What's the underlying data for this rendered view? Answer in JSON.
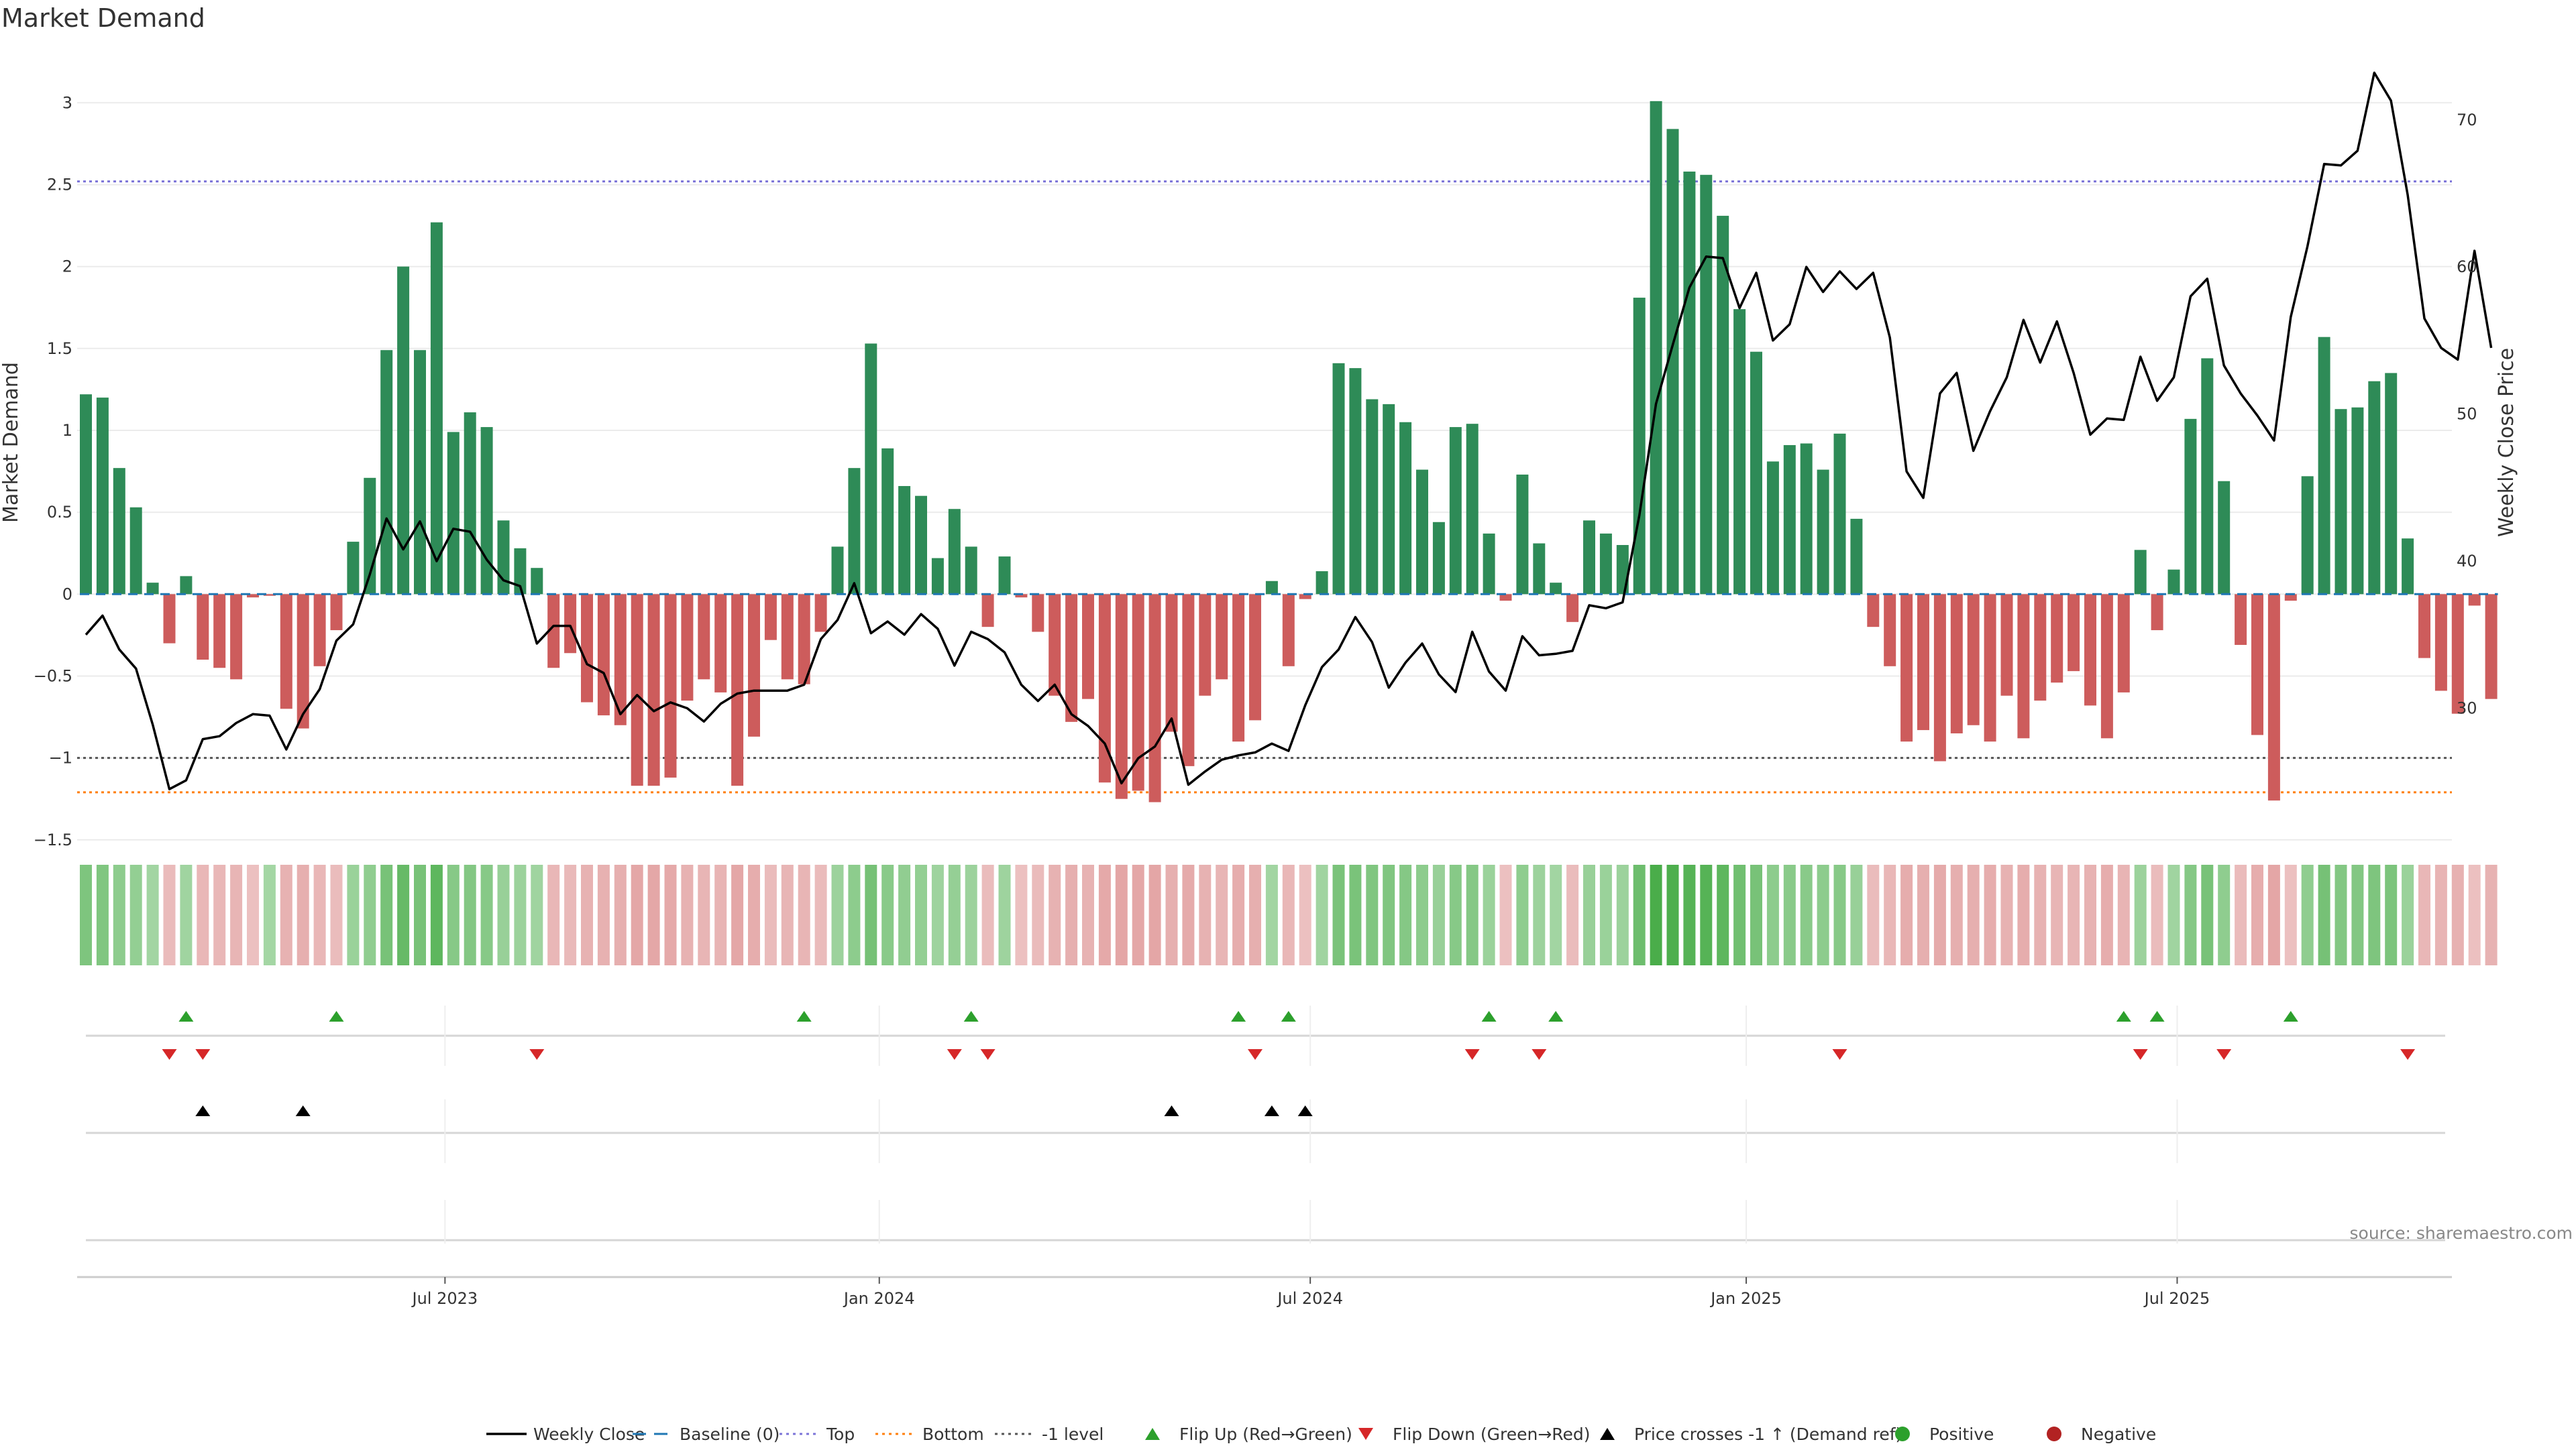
{
  "chart_data": {
    "type": "bar",
    "title": "Market Demand",
    "ylabel": "Market Demand",
    "y2label": "Weekly Close Price",
    "ylim": [
      -1.55,
      3.3
    ],
    "y2lim": [
      20.5,
      74.5
    ],
    "yticks": [
      "3",
      "2.5",
      "2",
      "1.5",
      "1",
      "0.5",
      "0",
      "−0.5",
      "−1",
      "−1.5"
    ],
    "y2ticks": [
      "70",
      "60",
      "50",
      "40",
      "30"
    ],
    "xticks": [
      {
        "label": "Jul 2023",
        "week": 21.5
      },
      {
        "label": "Jan 2024",
        "week": 47.5
      },
      {
        "label": "Jul 2024",
        "week": 73.3
      },
      {
        "label": "Jan 2025",
        "week": 99.4
      },
      {
        "label": "Jul 2025",
        "week": 125.2
      }
    ],
    "reference_lines": [
      {
        "name": "Top",
        "value": 2.52,
        "color": "#7c74d8",
        "style": "dotted"
      },
      {
        "name": "Bottom",
        "value": -1.21,
        "color": "#ff7f0e",
        "style": "dotted"
      },
      {
        "name": "-1 level",
        "value": -1.0,
        "color": "#555555",
        "style": "dotted"
      }
    ],
    "demand": [
      1.22,
      1.2,
      0.77,
      0.53,
      0.07,
      -0.3,
      0.11,
      -0.4,
      -0.45,
      -0.52,
      -0.02,
      -0.01,
      -0.7,
      -0.82,
      -0.44,
      -0.22,
      0.32,
      0.71,
      1.49,
      2.0,
      1.49,
      2.27,
      0.99,
      1.11,
      1.02,
      0.45,
      0.28,
      0.16,
      -0.45,
      -0.36,
      -0.66,
      -0.74,
      -0.8,
      -1.17,
      -1.17,
      -1.12,
      -0.65,
      -0.52,
      -0.6,
      -1.17,
      -0.87,
      -0.28,
      -0.52,
      -0.55,
      -0.23,
      0.29,
      0.77,
      1.53,
      0.89,
      0.66,
      0.6,
      0.22,
      0.52,
      0.29,
      -0.2,
      0.23,
      -0.02,
      -0.23,
      -0.62,
      -0.78,
      -0.64,
      -1.15,
      -1.25,
      -1.2,
      -1.27,
      -0.84,
      -1.05,
      -0.62,
      -0.52,
      -0.9,
      -0.77,
      0.08,
      -0.44,
      -0.03,
      0.14,
      1.41,
      1.38,
      1.19,
      1.16,
      1.05,
      0.76,
      0.44,
      1.02,
      1.04,
      0.37,
      -0.04,
      0.73,
      0.31,
      0.07,
      -0.17,
      0.45,
      0.37,
      0.3,
      1.81,
      3.01,
      2.84,
      2.58,
      2.56,
      2.31,
      1.74,
      1.48,
      0.81,
      0.91,
      0.92,
      0.76,
      0.98,
      0.46,
      -0.2,
      -0.44,
      -0.9,
      -0.83,
      -1.02,
      -0.85,
      -0.8,
      -0.9,
      -0.62,
      -0.88,
      -0.65,
      -0.54,
      -0.47,
      -0.68,
      -0.88,
      -0.6,
      0.27,
      -0.22,
      0.15,
      1.07,
      1.44,
      0.69,
      -0.31,
      -0.86,
      -1.26,
      -0.04,
      0.72,
      1.57,
      1.13,
      1.14,
      1.3,
      1.35,
      0.34,
      -0.39,
      -0.59,
      -0.73,
      -0.07,
      -0.64
    ],
    "weekly_close": [
      35.0,
      36.3,
      34.0,
      32.7,
      28.9,
      24.5,
      25.1,
      27.9,
      28.1,
      29.0,
      29.6,
      29.5,
      27.2,
      29.6,
      31.3,
      34.6,
      35.7,
      39.1,
      42.9,
      40.8,
      42.7,
      40.0,
      42.2,
      42.0,
      40.1,
      38.7,
      38.3,
      34.4,
      35.6,
      35.6,
      33.0,
      32.4,
      29.6,
      30.9,
      29.8,
      30.4,
      30.0,
      29.1,
      30.3,
      31.0,
      31.2,
      31.2,
      31.2,
      31.6,
      34.7,
      36.0,
      38.5,
      35.1,
      35.9,
      35.0,
      36.4,
      35.4,
      32.9,
      35.2,
      34.7,
      33.8,
      31.6,
      30.5,
      31.6,
      29.6,
      28.8,
      27.6,
      24.9,
      26.6,
      27.4,
      29.3,
      24.8,
      25.7,
      26.5,
      26.8,
      27.0,
      27.6,
      27.1,
      30.2,
      32.8,
      34.0,
      36.2,
      34.5,
      31.4,
      33.1,
      34.4,
      32.3,
      31.1,
      35.2,
      32.5,
      31.2,
      34.9,
      33.6,
      33.7,
      33.9,
      37.0,
      36.8,
      37.2,
      43.1,
      50.7,
      54.7,
      58.6,
      60.7,
      60.6,
      57.2,
      59.6,
      55.0,
      56.1,
      60.0,
      58.3,
      59.7,
      58.5,
      59.6,
      55.2,
      46.1,
      44.3,
      51.4,
      52.8,
      47.5,
      50.2,
      52.5,
      56.4,
      53.5,
      56.3,
      52.8,
      48.6,
      49.7,
      49.6,
      53.9,
      50.9,
      52.5,
      58.0,
      59.2,
      53.3,
      51.4,
      49.9,
      48.2,
      56.6,
      61.4,
      67.0,
      66.9,
      67.9,
      73.2,
      71.3,
      64.9,
      56.5,
      54.5,
      53.7,
      61.1,
      54.5
    ],
    "strength_strip": [
      0.41,
      0.4,
      0.26,
      0.18,
      0.02,
      -0.1,
      0.04,
      -0.13,
      -0.15,
      -0.17,
      -0.01,
      0.0,
      -0.23,
      -0.27,
      -0.15,
      -0.07,
      0.11,
      0.24,
      0.5,
      0.67,
      0.5,
      0.76,
      0.33,
      0.37,
      0.34,
      0.15,
      0.09,
      0.05,
      -0.15,
      -0.12,
      -0.22,
      -0.25,
      -0.27,
      -0.39,
      -0.39,
      -0.37,
      -0.22,
      -0.17,
      -0.2,
      -0.39,
      -0.29,
      -0.09,
      -0.17,
      -0.18,
      -0.08,
      0.1,
      0.26,
      0.51,
      0.3,
      0.22,
      0.2,
      0.07,
      0.17,
      0.1,
      -0.07,
      0.08,
      -0.01,
      -0.08,
      -0.21,
      -0.26,
      -0.21,
      -0.38,
      -0.42,
      -0.4,
      -0.42,
      -0.28,
      -0.35,
      -0.21,
      -0.17,
      -0.3,
      -0.26,
      0.03,
      -0.15,
      -0.01,
      0.05,
      0.47,
      0.46,
      0.4,
      0.39,
      0.35,
      0.25,
      0.15,
      0.34,
      0.35,
      0.12,
      -0.01,
      0.24,
      0.1,
      0.02,
      -0.06,
      0.15,
      0.12,
      0.1,
      0.6,
      1.0,
      0.95,
      0.86,
      0.85,
      0.77,
      0.58,
      0.49,
      0.27,
      0.3,
      0.31,
      0.25,
      0.33,
      0.15,
      -0.07,
      -0.15,
      -0.3,
      -0.28,
      -0.34,
      -0.28,
      -0.27,
      -0.3,
      -0.21,
      -0.29,
      -0.22,
      -0.18,
      -0.16,
      -0.23,
      -0.29,
      -0.2,
      0.09,
      -0.07,
      0.05,
      0.36,
      0.48,
      0.23,
      -0.1,
      -0.29,
      -0.42,
      -0.01,
      0.24,
      0.52,
      0.38,
      0.38,
      0.43,
      0.45,
      0.11,
      -0.13,
      -0.2,
      -0.24,
      -0.02,
      -0.21
    ],
    "flip_up_weeks": [
      6,
      15,
      43,
      53,
      69,
      72,
      84,
      88,
      122,
      124,
      132
    ],
    "flip_down_weeks": [
      5,
      7,
      27,
      52,
      54,
      70,
      83,
      87,
      105,
      123,
      128,
      139
    ],
    "price_cross_weeks": [
      7,
      13,
      65,
      71,
      73
    ],
    "legend": [
      {
        "label": "Weekly Close",
        "marker": "line",
        "color": "#000000"
      },
      {
        "label": "Baseline (0)",
        "marker": "dash",
        "color": "#1f77b4"
      },
      {
        "label": "Top",
        "marker": "dotted",
        "color": "#7c74d8"
      },
      {
        "label": "Bottom",
        "marker": "dotted",
        "color": "#ff7f0e"
      },
      {
        "label": "-1 level",
        "marker": "dotted",
        "color": "#555555"
      },
      {
        "label": "Flip Up (Red→Green)",
        "marker": "triangle-up",
        "color": "#2ca02c"
      },
      {
        "label": "Flip Down (Green→Red)",
        "marker": "triangle-down",
        "color": "#d62728"
      },
      {
        "label": "Price crosses -1 ↑ (Demand ref)",
        "marker": "triangle-up",
        "color": "#000000"
      },
      {
        "label": "Positive",
        "marker": "circle",
        "color": "#2ca02c"
      },
      {
        "label": "Negative",
        "marker": "circle",
        "color": "#b22222"
      }
    ],
    "colors": {
      "positive_bar": "#2e8b57",
      "negative_bar": "#cd5c5c",
      "price_line": "#000000",
      "baseline": "#1f77b4"
    },
    "grid": true,
    "legend_position": "bottom"
  },
  "source": "source: sharemaestro.com"
}
